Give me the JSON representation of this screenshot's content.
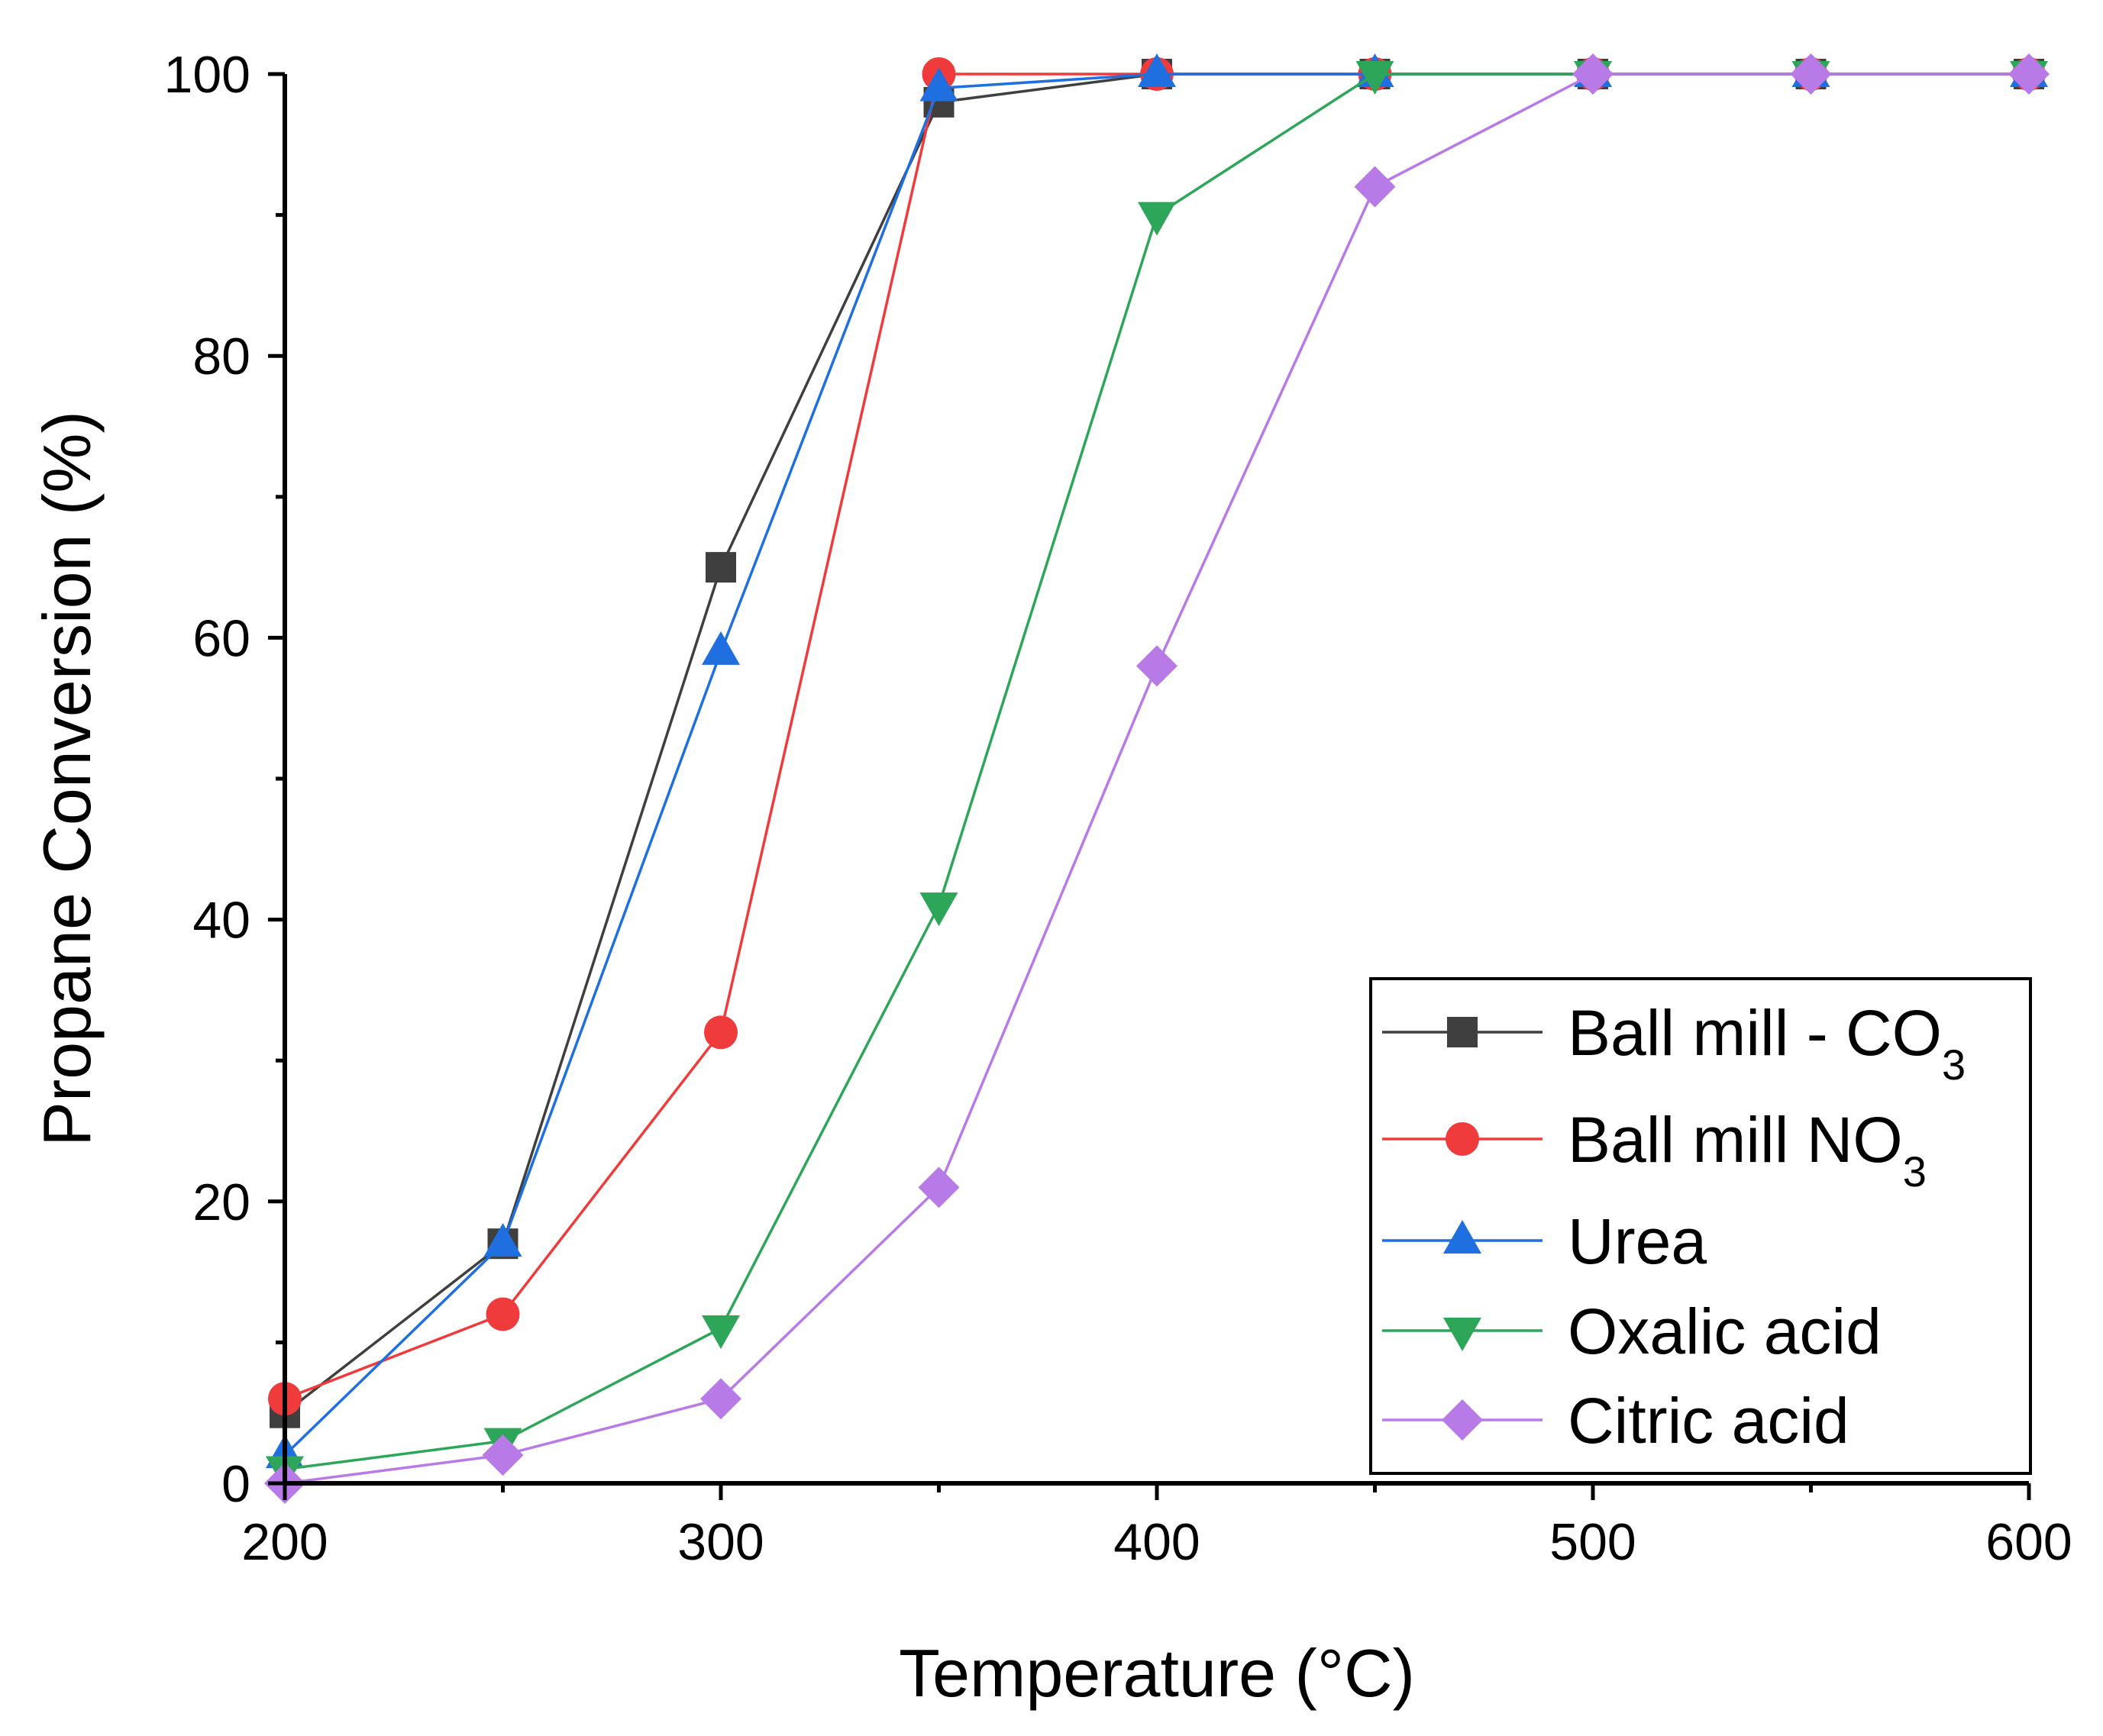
{
  "chart_data": {
    "type": "line",
    "title": "",
    "xlabel": "Temperature (°C)",
    "ylabel": "Propane Conversion (%)",
    "xlim": [
      200,
      600
    ],
    "ylim": [
      0,
      100
    ],
    "x_ticks": [
      200,
      300,
      400,
      500,
      600
    ],
    "x_tick_labels": [
      "200",
      "300",
      "400",
      "500",
      "600"
    ],
    "y_ticks": [
      0,
      20,
      40,
      60,
      80,
      100
    ],
    "y_tick_labels": [
      "0",
      "20",
      "40",
      "60",
      "80",
      "100"
    ],
    "x": [
      200,
      250,
      300,
      350,
      400,
      450,
      500,
      550,
      600
    ],
    "legend_position": "bottom-right",
    "series": [
      {
        "name": "Ball mill - CO3",
        "label_main": "Ball mill - CO",
        "label_sub": "3",
        "color": "#3f3f3f",
        "marker": "square",
        "values": [
          5,
          17,
          65,
          98,
          100,
          100,
          100,
          100,
          100
        ]
      },
      {
        "name": "Ball mill NO3",
        "label_main": "Ball mill NO",
        "label_sub": "3",
        "color": "#ef3b3b",
        "marker": "circle",
        "values": [
          6,
          12,
          32,
          100,
          100,
          100,
          100,
          100,
          100
        ]
      },
      {
        "name": "Urea",
        "label_main": "Urea",
        "label_sub": "",
        "color": "#1f6fe0",
        "marker": "triangle-up",
        "values": [
          2,
          17,
          59,
          99,
          100,
          100,
          100,
          100,
          100
        ]
      },
      {
        "name": "Oxalic acid",
        "label_main": "Oxalic acid",
        "label_sub": "",
        "color": "#2ea65a",
        "marker": "triangle-down",
        "values": [
          1,
          3,
          11,
          41,
          90,
          100,
          100,
          100,
          100
        ]
      },
      {
        "name": "Citric acid",
        "label_main": "Citric acid",
        "label_sub": "",
        "color": "#b87ae6",
        "marker": "diamond",
        "values": [
          0,
          2,
          6,
          21,
          58,
          92,
          100,
          100,
          100
        ]
      }
    ]
  }
}
